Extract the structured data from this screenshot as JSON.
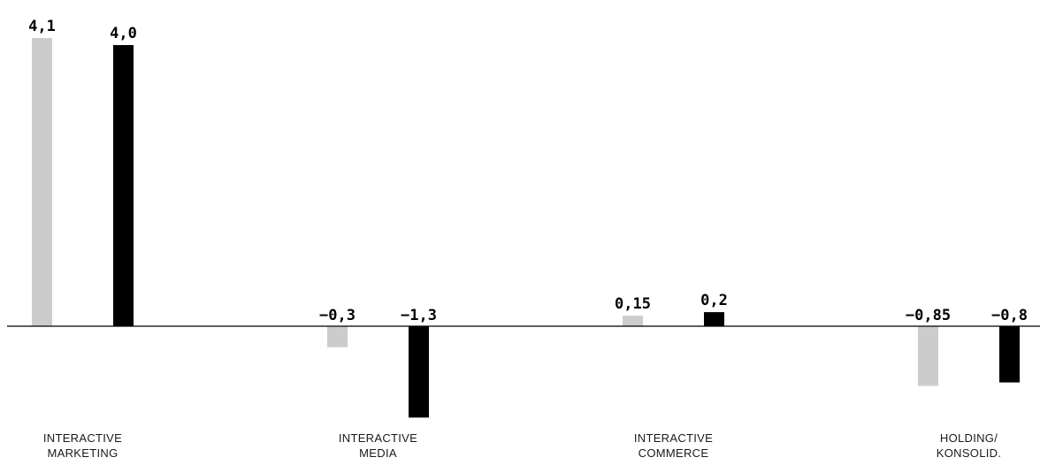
{
  "chart_data": {
    "type": "bar",
    "title": "",
    "xlabel": "",
    "ylabel": "",
    "ylim": [
      -1.5,
      4.2
    ],
    "grid": false,
    "legend": "none",
    "categories": [
      {
        "line1": "INTERACTIVE",
        "line2": "MARKETING"
      },
      {
        "line1": "INTERACTIVE",
        "line2": "MEDIA"
      },
      {
        "line1": "INTERACTIVE",
        "line2": "COMMERCE"
      },
      {
        "line1": "HOLDING/",
        "line2": "KONSOLID."
      }
    ],
    "series": [
      {
        "color": "#cccccc",
        "values": [
          4.1,
          -0.3,
          0.15,
          -0.85
        ],
        "labels": [
          "4,1",
          "−0,3",
          "0,15",
          "−0,85"
        ]
      },
      {
        "color": "#000000",
        "values": [
          4.0,
          -1.3,
          0.2,
          -0.8
        ],
        "labels": [
          "4,0",
          "−1,3",
          "0,2",
          "−0,8"
        ]
      }
    ]
  }
}
